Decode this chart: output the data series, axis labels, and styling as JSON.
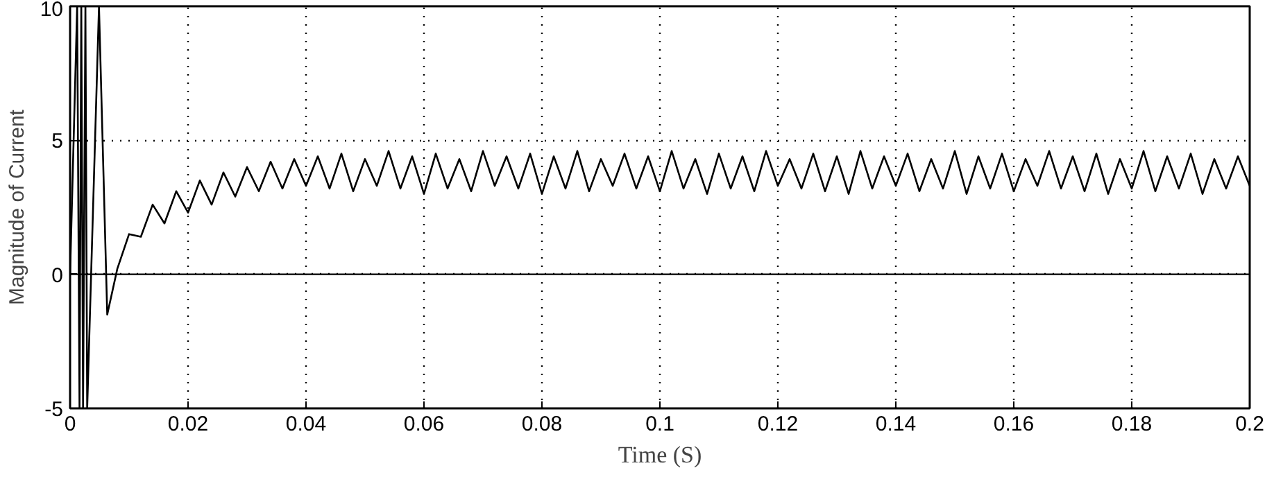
{
  "chart_data": {
    "type": "line",
    "xlabel": "Time (S)",
    "ylabel": "Magnitude of Current",
    "xlim": [
      0,
      0.2
    ],
    "ylim": [
      -5,
      10
    ],
    "xticks": [
      0,
      0.02,
      0.04,
      0.06,
      0.08,
      0.1,
      0.12,
      0.14,
      0.16,
      0.18,
      0.2
    ],
    "yticks": [
      -5,
      0,
      5,
      10
    ],
    "grid": true,
    "marker": "none",
    "line_style": "solid",
    "ref_lines": [
      {
        "axis": "y",
        "value": 0,
        "color": "#000000",
        "line_style": "solid"
      }
    ],
    "series": [
      {
        "color": "#000000",
        "x": [
          0,
          0.0012,
          0.0016,
          0.0019,
          0.0022,
          0.0026,
          0.0029,
          0.0049,
          0.0063,
          0.008,
          0.01,
          0.012,
          0.014,
          0.016,
          0.018,
          0.02,
          0.022,
          0.024,
          0.026,
          0.028,
          0.03,
          0.032,
          0.034,
          0.036,
          0.038,
          0.04,
          0.042,
          0.044,
          0.046,
          0.048,
          0.05,
          0.052,
          0.054,
          0.056,
          0.058,
          0.06,
          0.062,
          0.064,
          0.066,
          0.068,
          0.07,
          0.072,
          0.074,
          0.076,
          0.078,
          0.08,
          0.082,
          0.084,
          0.086,
          0.088,
          0.09,
          0.092,
          0.094,
          0.096,
          0.098,
          0.1,
          0.102,
          0.104,
          0.106,
          0.108,
          0.11,
          0.112,
          0.114,
          0.116,
          0.118,
          0.12,
          0.122,
          0.124,
          0.126,
          0.128,
          0.13,
          0.132,
          0.134,
          0.136,
          0.138,
          0.14,
          0.142,
          0.144,
          0.146,
          0.148,
          0.15,
          0.152,
          0.154,
          0.156,
          0.158,
          0.16,
          0.162,
          0.164,
          0.166,
          0.168,
          0.17,
          0.172,
          0.174,
          0.176,
          0.178,
          0.18,
          0.182,
          0.184,
          0.186,
          0.188,
          0.19,
          0.192,
          0.194,
          0.196,
          0.198,
          0.2
        ],
        "values": [
          0,
          10,
          -5,
          10,
          -5,
          10,
          -5,
          10,
          -1.5,
          0.2,
          1.5,
          1.4,
          2.6,
          1.9,
          3.1,
          2.3,
          3.5,
          2.6,
          3.8,
          2.9,
          4.0,
          3.1,
          4.2,
          3.2,
          4.3,
          3.3,
          4.4,
          3.2,
          4.5,
          3.1,
          4.3,
          3.3,
          4.6,
          3.2,
          4.4,
          3.0,
          4.5,
          3.2,
          4.3,
          3.1,
          4.6,
          3.3,
          4.4,
          3.2,
          4.5,
          3.0,
          4.4,
          3.2,
          4.6,
          3.1,
          4.3,
          3.3,
          4.5,
          3.2,
          4.4,
          3.1,
          4.6,
          3.2,
          4.3,
          3.0,
          4.5,
          3.2,
          4.4,
          3.1,
          4.6,
          3.3,
          4.3,
          3.2,
          4.5,
          3.1,
          4.4,
          3.0,
          4.6,
          3.2,
          4.4,
          3.3,
          4.5,
          3.1,
          4.3,
          3.2,
          4.6,
          3.0,
          4.4,
          3.2,
          4.5,
          3.1,
          4.3,
          3.3,
          4.6,
          3.2,
          4.4,
          3.1,
          4.5,
          3.0,
          4.3,
          3.2,
          4.6,
          3.1,
          4.4,
          3.2,
          4.5,
          3.0,
          4.3,
          3.2,
          4.4,
          3.3
        ]
      }
    ]
  }
}
